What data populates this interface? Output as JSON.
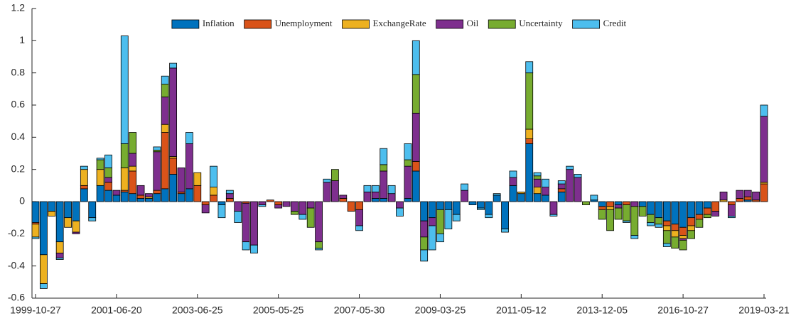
{
  "chart_data": {
    "type": "stacked_bar",
    "categories": [
      "1999-10-27",
      null,
      null,
      null,
      null,
      null,
      null,
      null,
      null,
      null,
      "2001-06-20",
      null,
      null,
      null,
      null,
      null,
      null,
      null,
      null,
      null,
      "2003-06-25",
      null,
      null,
      null,
      null,
      null,
      null,
      null,
      null,
      null,
      "2005-05-25",
      null,
      null,
      null,
      null,
      null,
      null,
      null,
      null,
      null,
      "2007-05-30",
      null,
      null,
      null,
      null,
      null,
      null,
      null,
      null,
      null,
      "2009-03-25",
      null,
      null,
      null,
      null,
      null,
      null,
      null,
      null,
      null,
      "2011-05-12",
      null,
      null,
      null,
      null,
      null,
      null,
      null,
      null,
      null,
      "2013-12-05",
      null,
      null,
      null,
      null,
      null,
      null,
      null,
      null,
      null,
      "2016-10-27",
      null,
      null,
      null,
      null,
      null,
      null,
      null,
      null,
      null,
      "2019-03-21"
    ],
    "series": [
      {
        "name": "Inflation",
        "color": "#0072bd",
        "values": [
          -0.13,
          -0.33,
          -0.06,
          -0.25,
          -0.1,
          -0.12,
          0.08,
          -0.1,
          0.1,
          0.07,
          0.04,
          0.06,
          0.05,
          0.02,
          0.02,
          0.05,
          0.08,
          0.17,
          0.05,
          0.08,
          0,
          0,
          0,
          -0.02,
          0,
          0,
          0,
          0,
          0,
          0,
          0,
          0,
          0,
          0,
          0,
          0,
          0,
          0,
          0,
          0,
          0,
          0,
          0.02,
          0.02,
          0,
          0,
          0.02,
          0.19,
          -0.12,
          -0.1,
          -0.05,
          -0.05,
          -0.08,
          0,
          -0.02,
          -0.04,
          -0.08,
          0.04,
          -0.17,
          0.1,
          0.05,
          0.36,
          0.05,
          0.04,
          0,
          0.06,
          0,
          0,
          0,
          0.01,
          -0.03,
          0,
          -0.02,
          0,
          0,
          -0.03,
          -0.08,
          -0.1,
          -0.12,
          -0.14,
          -0.16,
          -0.1,
          -0.08,
          -0.04,
          0,
          0,
          0,
          0,
          0.01,
          0,
          0
        ]
      },
      {
        "name": "Unemployment",
        "color": "#d95319",
        "values": [
          -0.01,
          0,
          0,
          0,
          0,
          0,
          0.02,
          0,
          0,
          0.05,
          0,
          0.01,
          0.14,
          0.02,
          0,
          0.02,
          0.35,
          0.1,
          0.01,
          0,
          0.1,
          -0.02,
          0.04,
          0,
          0.02,
          0,
          -0.01,
          0,
          0,
          0.01,
          -0.02,
          0,
          0,
          0,
          0,
          0,
          0,
          0,
          0.02,
          -0.06,
          -0.05,
          0,
          0,
          0,
          0,
          0,
          0,
          0.06,
          0,
          0,
          0,
          0,
          0,
          0,
          0,
          0,
          0,
          0,
          0,
          0,
          0,
          0.03,
          0,
          0,
          0,
          0.02,
          0,
          0,
          0,
          0,
          -0.02,
          -0.03,
          0,
          -0.02,
          0,
          0,
          0,
          0,
          -0.03,
          -0.04,
          -0.05,
          -0.05,
          -0.03,
          -0.04,
          -0.06,
          0,
          -0.02,
          0.02,
          0.02,
          0.01,
          0.11
        ]
      },
      {
        "name": "ExchangeRate",
        "color": "#edb120",
        "values": [
          -0.08,
          -0.18,
          -0.03,
          -0.07,
          -0.06,
          -0.07,
          0.1,
          0,
          0.1,
          0,
          0,
          0.14,
          0.03,
          0,
          0.01,
          0,
          0.05,
          0.01,
          0,
          0,
          0.08,
          0,
          0.05,
          0,
          0,
          0,
          0,
          0,
          0,
          0,
          0,
          0,
          0,
          0,
          0,
          0,
          0,
          0,
          0,
          0,
          0,
          0,
          0,
          0,
          0,
          0,
          0,
          0,
          0,
          0,
          0,
          0,
          0,
          0,
          0,
          0,
          0,
          0,
          0,
          0,
          0.01,
          0.06,
          0.04,
          0,
          0,
          0,
          0,
          0,
          0,
          0,
          0,
          -0.02,
          0,
          0,
          0,
          0,
          0,
          0,
          -0.03,
          -0.04,
          -0.02,
          -0.03,
          0,
          0,
          0,
          0.01,
          0,
          0,
          0,
          0,
          0.01
        ]
      },
      {
        "name": "Oil",
        "color": "#7e2f8e",
        "values": [
          0,
          0,
          0,
          -0.03,
          0,
          -0.01,
          0,
          0,
          0,
          0.03,
          0.03,
          0,
          0.08,
          0.06,
          0.02,
          0.24,
          0.17,
          0.55,
          0.15,
          0.28,
          0,
          -0.05,
          0,
          0,
          0.03,
          -0.06,
          -0.24,
          -0.27,
          -0.02,
          0,
          -0.02,
          -0.03,
          -0.06,
          -0.08,
          -0.04,
          -0.25,
          0.12,
          0.13,
          0.02,
          0,
          -0.1,
          0.06,
          0.04,
          0.17,
          0.05,
          -0.04,
          0.2,
          0.3,
          -0.1,
          -0.05,
          0,
          0,
          0,
          0.07,
          0,
          0,
          0,
          0,
          0,
          0.05,
          0,
          0,
          0.05,
          0.05,
          -0.08,
          0.03,
          0.2,
          0.15,
          0,
          0,
          0,
          0,
          -0.02,
          0,
          -0.03,
          0,
          0,
          0,
          0,
          0,
          -0.01,
          0,
          0,
          0,
          -0.03,
          0.05,
          -0.07,
          0.05,
          0.04,
          0.05,
          0.41
        ]
      },
      {
        "name": "Uncertainty",
        "color": "#77ac30",
        "values": [
          0,
          0,
          0,
          0,
          0,
          0,
          0,
          0,
          0.06,
          0.06,
          0,
          0.15,
          0.13,
          0,
          0,
          0.01,
          0.08,
          0,
          0,
          0,
          0,
          0,
          0,
          0,
          0,
          0,
          0,
          0,
          0,
          0,
          0,
          0,
          -0.02,
          0,
          -0.12,
          -0.04,
          0,
          0.07,
          0,
          0,
          0,
          0,
          0,
          0.04,
          0,
          0,
          0.04,
          0.24,
          -0.08,
          0,
          -0.15,
          0,
          0,
          0,
          0,
          0,
          0,
          0,
          0,
          0,
          0,
          0.35,
          0.02,
          0,
          0,
          0,
          0,
          0,
          -0.02,
          0,
          -0.06,
          -0.13,
          -0.07,
          -0.1,
          -0.18,
          -0.06,
          -0.05,
          -0.04,
          -0.08,
          -0.07,
          -0.06,
          -0.05,
          -0.05,
          -0.02,
          0,
          0,
          0,
          0,
          0,
          0,
          0
        ]
      },
      {
        "name": "Credit",
        "color": "#4dbeee",
        "values": [
          -0.01,
          -0.03,
          0,
          -0.01,
          0,
          0,
          0.02,
          -0.02,
          0.01,
          0.08,
          0,
          0.67,
          0,
          0,
          0,
          0.02,
          0.05,
          0.03,
          0,
          0.07,
          0,
          0,
          0.13,
          -0.08,
          0.02,
          -0.07,
          -0.05,
          -0.05,
          -0.01,
          0,
          0,
          0,
          0,
          -0.03,
          0,
          -0.01,
          0.02,
          0,
          0,
          0,
          -0.03,
          0.04,
          0.04,
          0.1,
          0.05,
          -0.05,
          0.1,
          0.21,
          -0.07,
          -0.15,
          -0.05,
          -0.12,
          -0.04,
          0.04,
          0,
          -0.01,
          -0.02,
          0.01,
          -0.02,
          0.04,
          0,
          0.07,
          0.02,
          0.05,
          -0.01,
          0.02,
          0.02,
          0.02,
          0,
          0.03,
          0,
          0,
          0,
          -0.01,
          -0.02,
          0,
          -0.02,
          -0.02,
          -0.02,
          0,
          0,
          0,
          0,
          0,
          0,
          0,
          -0.01,
          0,
          0,
          0,
          0.07
        ]
      }
    ],
    "ylim": [
      -0.6,
      1.2
    ],
    "yticks": [
      -0.6,
      -0.4,
      -0.2,
      0,
      0.2,
      0.4,
      0.6,
      0.8,
      1,
      1.2
    ],
    "legend": "north"
  }
}
